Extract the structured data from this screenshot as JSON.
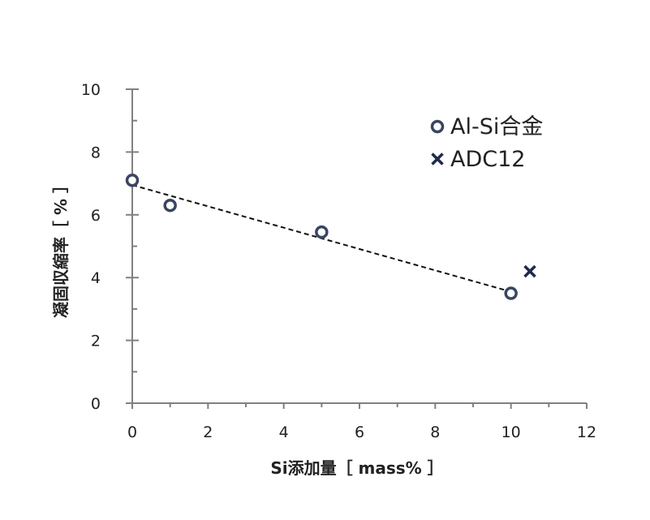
{
  "chart_data": {
    "type": "scatter",
    "title": "",
    "xlabel": "Si添加量［ mass% ］",
    "ylabel": "凝固収縮率［ % ］",
    "xlim": [
      0,
      12
    ],
    "ylim": [
      0,
      10
    ],
    "x_ticks": [
      "0",
      "2",
      "4",
      "6",
      "8",
      "10",
      "12"
    ],
    "y_ticks": [
      "0",
      "2",
      "4",
      "6",
      "8",
      "10"
    ],
    "grid": false,
    "legend_position": "top-right",
    "series": [
      {
        "name": "Al-Si合金",
        "marker": "circle",
        "color": "#3a4660",
        "points": [
          {
            "x": 0,
            "y": 7.1
          },
          {
            "x": 1,
            "y": 6.3
          },
          {
            "x": 5,
            "y": 5.45
          },
          {
            "x": 10,
            "y": 3.5
          }
        ]
      },
      {
        "name": "ADC12",
        "marker": "cross",
        "color": "#1e2a4a",
        "points": [
          {
            "x": 10.5,
            "y": 4.2
          }
        ]
      }
    ],
    "trendline": {
      "style": "dashed",
      "color": "#111111",
      "x": [
        0,
        10
      ],
      "y": [
        6.95,
        3.55
      ]
    }
  }
}
